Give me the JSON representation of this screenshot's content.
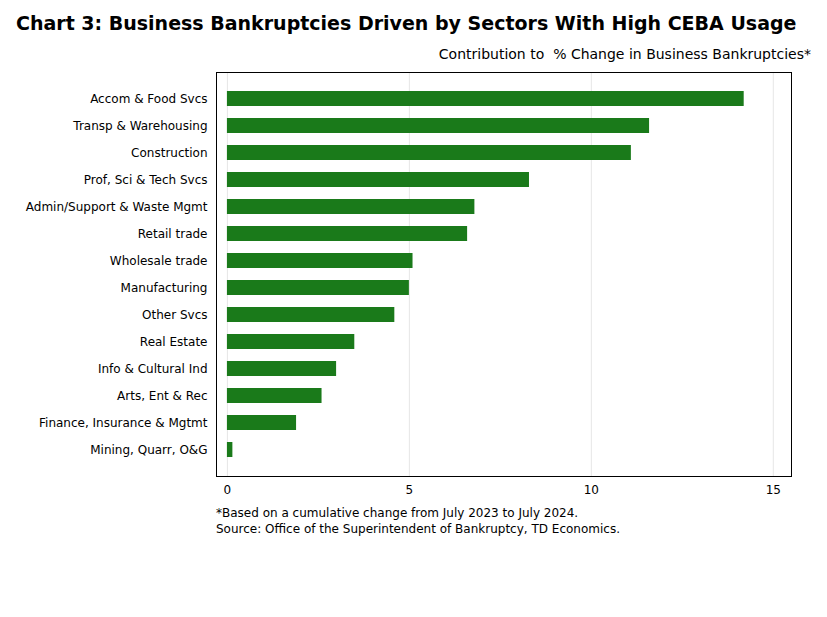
{
  "chart_data": {
    "type": "bar",
    "orientation": "horizontal",
    "title": "Chart 3: Business Bankruptcies Driven by Sectors With High CEBA Usage",
    "subtitle": "Contribution to  % Change in Business Bankruptcies*",
    "categories": [
      "Accom & Food Svcs",
      "Transp & Warehousing",
      "Construction",
      "Prof, Sci & Tech Svcs",
      "Admin/Support & Waste Mgmt",
      "Retail trade",
      "Wholesale trade",
      "Manufacturing",
      "Other Svcs",
      "Real Estate",
      "Info & Cultural Ind",
      "Arts, Ent & Rec",
      "Finance, Insurance & Mgtmt",
      "Mining, Quarr, O&G"
    ],
    "values": [
      14.2,
      11.6,
      11.1,
      8.3,
      6.8,
      6.6,
      5.1,
      5.0,
      4.6,
      3.5,
      3.0,
      2.6,
      1.9,
      0.15
    ],
    "color": "#1a7a1a",
    "xlim": [
      -0.3,
      15.5
    ],
    "xticks": [
      0,
      5,
      10,
      15
    ],
    "grid": true,
    "annotations": [
      "*Based on a cumulative change from July 2023 to July 2024.",
      "Source: Office of the Superintendent of Bankruptcy, TD Economics."
    ]
  }
}
